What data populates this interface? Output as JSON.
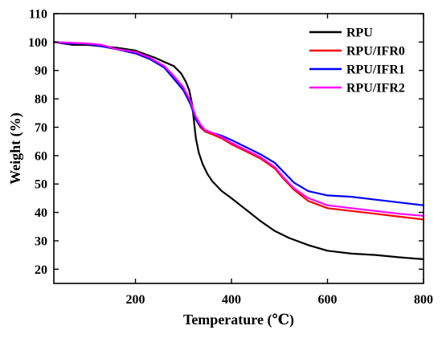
{
  "chart_data": {
    "type": "line",
    "title": "",
    "xlabel": "Temperature (℃)",
    "ylabel": "Weight (%)",
    "xlim": [
      30,
      800
    ],
    "ylim": [
      15,
      110
    ],
    "x_ticks": [
      200,
      400,
      600,
      800
    ],
    "y_ticks": [
      20,
      30,
      40,
      50,
      60,
      70,
      80,
      90,
      100,
      110
    ],
    "grid": false,
    "legend_position": "top-right",
    "series": [
      {
        "name": "RPU",
        "color": "#000000",
        "x": [
          30,
          50,
          70,
          100,
          130,
          160,
          200,
          240,
          260,
          280,
          295,
          305,
          312,
          318,
          322,
          326,
          332,
          340,
          350,
          360,
          380,
          400,
          430,
          460,
          490,
          520,
          560,
          600,
          650,
          700,
          750,
          800
        ],
        "y": [
          100,
          99.5,
          99,
          99,
          98.5,
          98,
          97,
          94.5,
          93,
          91.5,
          89,
          86,
          83,
          78,
          72,
          66,
          61,
          57,
          53.5,
          51,
          47.5,
          45,
          41,
          37,
          33.5,
          31,
          28.5,
          26.5,
          25.5,
          25,
          24.2,
          23.5
        ]
      },
      {
        "name": "RPU/IFR0",
        "color": "#ff0000",
        "x": [
          30,
          60,
          100,
          130,
          160,
          200,
          230,
          260,
          280,
          300,
          315,
          325,
          335,
          345,
          360,
          380,
          400,
          430,
          460,
          490,
          510,
          530,
          560,
          600,
          650,
          700,
          750,
          800
        ],
        "y": [
          100,
          99.5,
          99.3,
          98.5,
          97.5,
          96,
          94,
          91,
          87,
          83,
          78,
          73,
          70,
          68.5,
          67.5,
          66,
          64,
          61.5,
          59,
          55.5,
          51.5,
          48,
          44,
          41.5,
          40.5,
          39.5,
          38.5,
          37.5
        ]
      },
      {
        "name": "RPU/IFR1",
        "color": "#0000ff",
        "x": [
          30,
          60,
          100,
          130,
          160,
          200,
          230,
          260,
          280,
          300,
          315,
          325,
          335,
          345,
          360,
          380,
          400,
          430,
          460,
          490,
          510,
          530,
          560,
          600,
          650,
          700,
          750,
          800
        ],
        "y": [
          100,
          99.5,
          99.3,
          98.5,
          97.5,
          96,
          94,
          91,
          87,
          83,
          78,
          73,
          70.5,
          69,
          68,
          67,
          65.5,
          63,
          60.5,
          57.5,
          54,
          50.5,
          47.5,
          46,
          45.5,
          44.5,
          43.5,
          42.5
        ]
      },
      {
        "name": "RPU/IFR2",
        "color": "#ff00ff",
        "x": [
          30,
          60,
          100,
          130,
          160,
          200,
          230,
          260,
          280,
          300,
          315,
          325,
          335,
          345,
          360,
          380,
          400,
          430,
          460,
          490,
          510,
          530,
          560,
          600,
          650,
          700,
          750,
          800
        ],
        "y": [
          100,
          99.8,
          99.5,
          99,
          97.5,
          96.5,
          94.5,
          91.5,
          88,
          84,
          79,
          74,
          71,
          69,
          68,
          66.5,
          64.5,
          62,
          59.5,
          56,
          52,
          48.5,
          45,
          42.5,
          41.5,
          40.5,
          39.5,
          38.8
        ]
      }
    ]
  }
}
